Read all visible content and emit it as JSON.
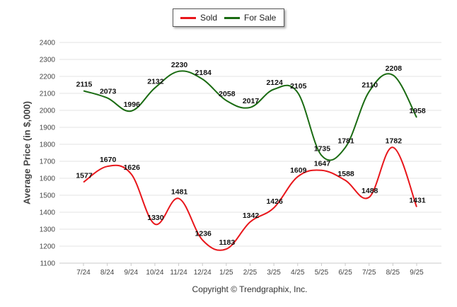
{
  "chart_data": {
    "type": "line",
    "categories": [
      "7/24",
      "8/24",
      "9/24",
      "10/24",
      "11/24",
      "12/24",
      "1/25",
      "2/25",
      "3/25",
      "4/25",
      "5/25",
      "6/25",
      "7/25",
      "8/25",
      "9/25"
    ],
    "series": [
      {
        "name": "Sold",
        "color": "#e8161b",
        "values": [
          1577,
          1670,
          1626,
          1330,
          1481,
          1236,
          1183,
          1342,
          1426,
          1609,
          1647,
          1588,
          1488,
          1782,
          1431
        ]
      },
      {
        "name": "For Sale",
        "color": "#1a6b12",
        "values": [
          2115,
          2073,
          1996,
          2132,
          2230,
          2184,
          2058,
          2017,
          2124,
          2105,
          1735,
          1781,
          2110,
          2208,
          1958
        ]
      }
    ],
    "ylabel": "Average Price (in $,000)",
    "xlabel": "",
    "ylim": [
      1100,
      2400
    ],
    "yticks": [
      1100,
      1200,
      1300,
      1400,
      1500,
      1600,
      1700,
      1800,
      1900,
      2000,
      2100,
      2200,
      2300,
      2400
    ],
    "grid": true,
    "legend": "top-center"
  },
  "footer": {
    "credit": "Copyright © Trendgraphix, Inc."
  }
}
